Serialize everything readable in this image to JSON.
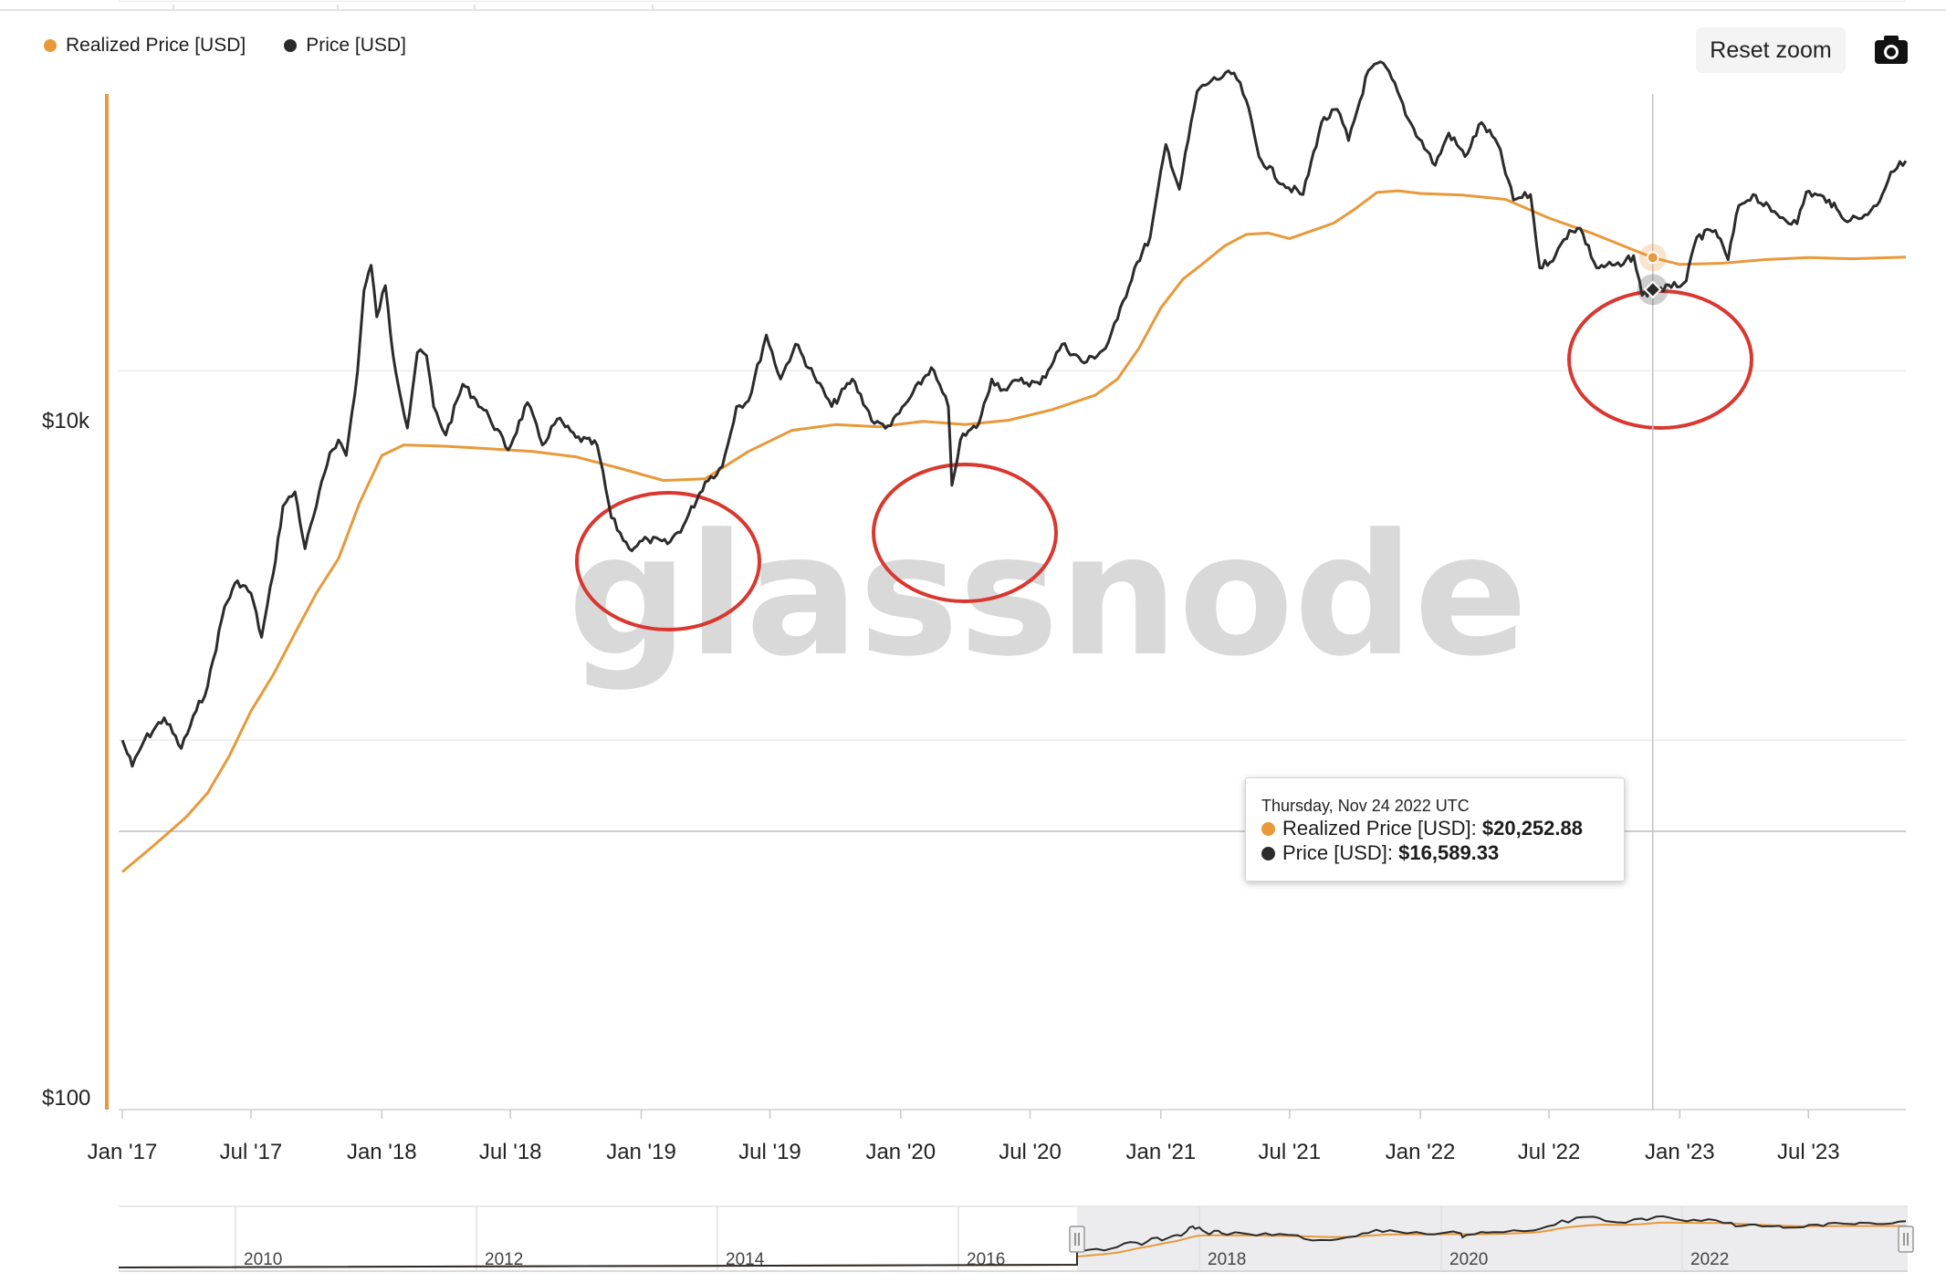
{
  "toolbar": {
    "reset_label": "Reset zoom",
    "camera_icon": "camera-icon"
  },
  "legend": [
    {
      "label": "Realized Price [USD]",
      "color": "#e8993a"
    },
    {
      "label": "Price [USD]",
      "color": "#2b2b2b"
    }
  ],
  "tooltip": {
    "date": "Thursday, Nov 24 2022 UTC",
    "rows": [
      {
        "label": "Realized Price [USD]",
        "value": "$20,252.88",
        "color": "#e8993a"
      },
      {
        "label": "Price [USD]",
        "value": "$16,589.33",
        "color": "#2b2b2b"
      }
    ]
  },
  "watermark": "glassnode",
  "navigator": {
    "ticks": [
      "2010",
      "2012",
      "2014",
      "2016",
      "2018",
      "2020",
      "2022"
    ]
  },
  "chart_data": {
    "type": "line",
    "title": "",
    "xlabel": "",
    "ylabel": "",
    "y_scale": "log",
    "ylim": [
      100,
      100000
    ],
    "y_tick_labels": [
      "$10k",
      "$100"
    ],
    "x_tick_labels": [
      "Jan '17",
      "Jul '17",
      "Jan '18",
      "Jul '18",
      "Jan '19",
      "Jul '19",
      "Jan '20",
      "Jul '20",
      "Jan '21",
      "Jul '21",
      "Jan '22",
      "Jul '22",
      "Jan '23",
      "Jul '23"
    ],
    "xlim": [
      "2017-01-01",
      "2023-11-15"
    ],
    "legend_position": "top-left",
    "grid": true,
    "highlight_date": "2022-11-24",
    "annotations": [
      "red circle ~ Dec 2018 – Mar 2019",
      "red circle ~ Mar 2020",
      "red circle ~ Nov 2022 – Feb 2023"
    ],
    "series": [
      {
        "name": "Realized Price [USD]",
        "color": "#e8993a",
        "x": [
          "2017-01-01",
          "2017-02-15",
          "2017-04-01",
          "2017-05-01",
          "2017-06-01",
          "2017-07-01",
          "2017-08-01",
          "2017-09-01",
          "2017-10-01",
          "2017-11-01",
          "2017-12-01",
          "2018-01-01",
          "2018-02-01",
          "2018-04-01",
          "2018-06-01",
          "2018-08-01",
          "2018-10-01",
          "2018-12-01",
          "2019-02-01",
          "2019-04-01",
          "2019-06-01",
          "2019-08-01",
          "2019-10-01",
          "2019-12-01",
          "2020-02-01",
          "2020-04-01",
          "2020-06-01",
          "2020-08-01",
          "2020-10-01",
          "2020-11-01",
          "2020-12-01",
          "2021-01-01",
          "2021-02-01",
          "2021-03-01",
          "2021-04-01",
          "2021-05-01",
          "2021-06-01",
          "2021-07-01",
          "2021-08-01",
          "2021-09-01",
          "2021-10-01",
          "2021-11-01",
          "2021-12-01",
          "2022-01-01",
          "2022-03-01",
          "2022-05-01",
          "2022-07-01",
          "2022-09-01",
          "2022-11-24",
          "2023-01-01",
          "2023-03-01",
          "2023-05-01",
          "2023-07-01",
          "2023-09-01",
          "2023-11-15"
        ],
        "y": [
          440,
          520,
          620,
          720,
          910,
          1200,
          1500,
          1950,
          2500,
          3100,
          4400,
          5900,
          6300,
          6250,
          6150,
          6050,
          5850,
          5450,
          5050,
          5100,
          6050,
          6900,
          7150,
          7050,
          7300,
          7150,
          7350,
          7850,
          8600,
          9500,
          11500,
          14800,
          17700,
          19500,
          21800,
          23400,
          23600,
          22800,
          23900,
          25100,
          27400,
          30400,
          30700,
          30200,
          29900,
          29100,
          25900,
          23500,
          20252,
          19400,
          19550,
          20000,
          20250,
          20100,
          20300
        ]
      },
      {
        "name": "Price [USD]",
        "color": "#2b2b2b",
        "x": [
          "2017-01-01",
          "2017-01-15",
          "2017-02-01",
          "2017-03-01",
          "2017-03-25",
          "2017-04-15",
          "2017-05-01",
          "2017-05-25",
          "2017-06-12",
          "2017-07-01",
          "2017-07-16",
          "2017-08-01",
          "2017-08-15",
          "2017-09-01",
          "2017-09-15",
          "2017-10-01",
          "2017-10-20",
          "2017-11-01",
          "2017-11-12",
          "2017-11-28",
          "2017-12-07",
          "2017-12-17",
          "2017-12-25",
          "2018-01-06",
          "2018-01-17",
          "2018-02-06",
          "2018-02-20",
          "2018-03-05",
          "2018-03-15",
          "2018-04-01",
          "2018-04-25",
          "2018-05-10",
          "2018-06-01",
          "2018-06-28",
          "2018-07-25",
          "2018-08-15",
          "2018-09-05",
          "2018-10-01",
          "2018-10-31",
          "2018-11-20",
          "2018-12-15",
          "2019-01-10",
          "2019-02-07",
          "2019-03-01",
          "2019-04-01",
          "2019-04-25",
          "2019-05-15",
          "2019-06-01",
          "2019-06-26",
          "2019-07-16",
          "2019-08-06",
          "2019-09-01",
          "2019-09-26",
          "2019-10-25",
          "2019-11-25",
          "2019-12-18",
          "2020-01-15",
          "2020-02-13",
          "2020-03-08",
          "2020-03-13",
          "2020-03-25",
          "2020-04-20",
          "2020-05-08",
          "2020-05-25",
          "2020-06-15",
          "2020-07-15",
          "2020-08-15",
          "2020-09-15",
          "2020-10-15",
          "2020-11-01",
          "2020-11-25",
          "2020-12-17",
          "2021-01-08",
          "2021-01-27",
          "2021-02-21",
          "2021-03-13",
          "2021-04-14",
          "2021-05-01",
          "2021-05-19",
          "2021-06-22",
          "2021-07-20",
          "2021-08-15",
          "2021-09-06",
          "2021-09-22",
          "2021-10-20",
          "2021-11-10",
          "2021-11-30",
          "2021-12-15",
          "2022-01-22",
          "2022-02-10",
          "2022-03-05",
          "2022-03-28",
          "2022-04-20",
          "2022-05-12",
          "2022-06-05",
          "2022-06-18",
          "2022-07-10",
          "2022-07-30",
          "2022-08-14",
          "2022-09-06",
          "2022-09-20",
          "2022-10-10",
          "2022-10-28",
          "2022-11-09",
          "2022-11-24",
          "2022-12-20",
          "2023-01-10",
          "2023-01-25",
          "2023-02-20",
          "2023-03-10",
          "2023-03-25",
          "2023-04-14",
          "2023-05-10",
          "2023-06-15",
          "2023-06-28",
          "2023-07-30",
          "2023-08-17",
          "2023-09-10",
          "2023-10-05",
          "2023-10-25",
          "2023-11-15"
        ],
        "y": [
          1000,
          850,
          1000,
          1150,
          950,
          1200,
          1400,
          2300,
          2700,
          2500,
          1900,
          2800,
          4300,
          4700,
          3300,
          4300,
          6000,
          6500,
          5900,
          10000,
          16500,
          19300,
          14000,
          17000,
          11000,
          7000,
          11200,
          11000,
          8000,
          6700,
          9200,
          8500,
          7500,
          6100,
          8200,
          6300,
          7400,
          6600,
          6300,
          4000,
          3300,
          3500,
          3400,
          3800,
          5000,
          5500,
          8000,
          8300,
          12500,
          9500,
          11800,
          9700,
          8000,
          9500,
          7200,
          7100,
          8500,
          10200,
          8000,
          4900,
          6500,
          7200,
          9500,
          8900,
          9400,
          9200,
          11800,
          10500,
          11500,
          13800,
          19000,
          23000,
          41000,
          31000,
          57000,
          61000,
          64000,
          54000,
          38000,
          32000,
          30000,
          47000,
          51000,
          42000,
          65000,
          68000,
          57000,
          48000,
          36000,
          44000,
          38000,
          47000,
          41000,
          29000,
          30000,
          19000,
          20500,
          24000,
          24300,
          19000,
          19300,
          19200,
          20500,
          16000,
          16589,
          16800,
          17500,
          23000,
          24000,
          20000,
          28000,
          30000,
          27000,
          25000,
          30500,
          29000,
          26000,
          25800,
          28000,
          34500,
          37000
        ]
      }
    ],
    "navigator": {
      "series": "Price [USD] and Realized Price [USD] 2009–2023",
      "selected_range": [
        "2017-01-01",
        "2023-11-15"
      ]
    }
  }
}
